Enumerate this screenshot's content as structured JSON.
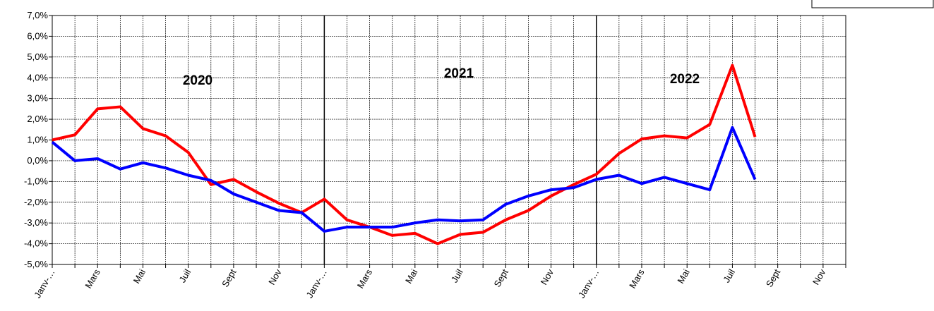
{
  "chart_data": {
    "type": "line",
    "categories": [
      "Janv-…",
      null,
      "Mars",
      null,
      "Mai",
      null,
      "Juil",
      null,
      "Sept",
      null,
      "Nov",
      null,
      "Janv-…",
      null,
      "Mars",
      null,
      "Mai",
      null,
      "Juil",
      null,
      "Sept",
      null,
      "Nov",
      null,
      "Janv-…",
      null,
      "Mars",
      null,
      "Mai",
      null,
      "Juil",
      null,
      "Sept",
      null,
      "Nov",
      null
    ],
    "series": [
      {
        "color": "#ff0000",
        "values": [
          1.0,
          1.25,
          2.5,
          2.6,
          1.55,
          1.2,
          0.4,
          -1.15,
          -0.9,
          -1.5,
          -2.05,
          -2.5,
          -1.85,
          -2.85,
          -3.2,
          -3.6,
          -3.5,
          -4.0,
          -3.55,
          -3.45,
          -2.85,
          -2.4,
          -1.7,
          -1.15,
          -0.65,
          0.35,
          1.05,
          1.2,
          1.1,
          1.75,
          4.6,
          1.15,
          null,
          null,
          null,
          null
        ]
      },
      {
        "color": "#0000ff",
        "values": [
          0.9,
          0.0,
          0.1,
          -0.4,
          -0.1,
          -0.35,
          -0.7,
          -0.95,
          -1.6,
          -2.0,
          -2.4,
          -2.5,
          -3.4,
          -3.2,
          -3.2,
          -3.2,
          -3.0,
          -2.85,
          -2.9,
          -2.85,
          -2.1,
          -1.7,
          -1.4,
          -1.3,
          -0.9,
          -0.7,
          -1.1,
          -0.8,
          -1.1,
          -1.4,
          1.6,
          -0.9,
          null,
          null,
          null,
          null
        ]
      }
    ],
    "ylim": [
      -5,
      7
    ],
    "yticks": [
      {
        "value": -5,
        "label": "-5,0%"
      },
      {
        "value": -4,
        "label": "-4,0%"
      },
      {
        "value": -3,
        "label": "-3,0%"
      },
      {
        "value": -2,
        "label": "-2,0%"
      },
      {
        "value": -1,
        "label": "-1,0%"
      },
      {
        "value": 0,
        "label": "0,0%"
      },
      {
        "value": 1,
        "label": "1,0%"
      },
      {
        "value": 2,
        "label": "2,0%"
      },
      {
        "value": 3,
        "label": "3,0%"
      },
      {
        "value": 4,
        "label": "4,0%"
      },
      {
        "value": 5,
        "label": "5,0%"
      },
      {
        "value": 6,
        "label": "6,0%"
      },
      {
        "value": 7,
        "label": "7,0%"
      }
    ],
    "grid": true,
    "annotations": [
      "2020",
      "2021",
      "2022"
    ]
  }
}
